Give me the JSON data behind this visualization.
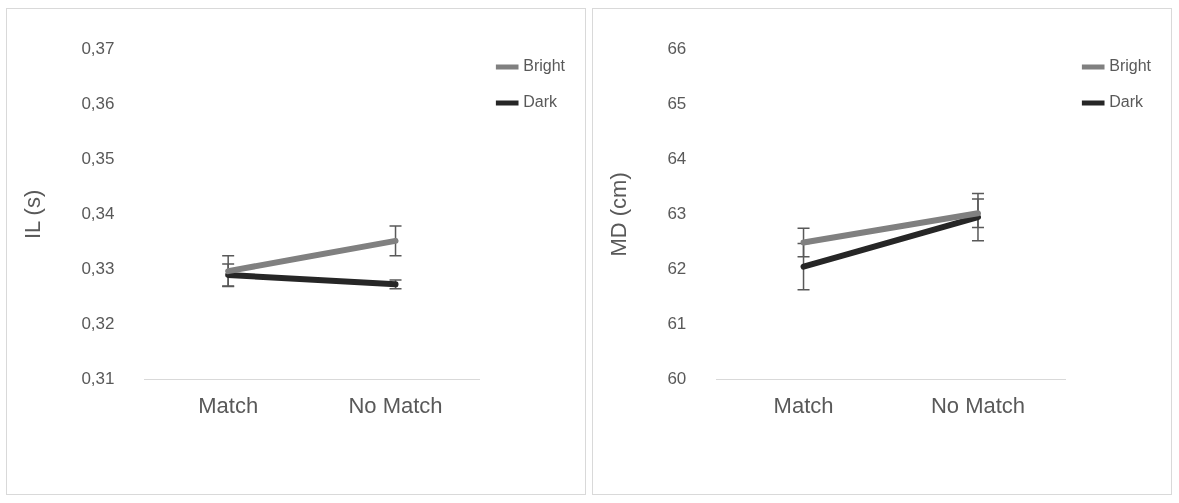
{
  "chart_data": [
    {
      "type": "line",
      "ylabel": "IL (s)",
      "categories": [
        "Match",
        "No Match"
      ],
      "ylim": [
        0.31,
        0.37
      ],
      "yticks": [
        {
          "value": 0.31,
          "label": "0,31"
        },
        {
          "value": 0.32,
          "label": "0,32"
        },
        {
          "value": 0.33,
          "label": "0,33"
        },
        {
          "value": 0.34,
          "label": "0,34"
        },
        {
          "value": 0.35,
          "label": "0,35"
        },
        {
          "value": 0.36,
          "label": "0,36"
        },
        {
          "value": 0.37,
          "label": "0,37"
        }
      ],
      "series": [
        {
          "name": "Bright",
          "color": "#808080",
          "values": [
            0.3297,
            0.3352
          ],
          "errors": [
            0.0028,
            0.0027
          ]
        },
        {
          "name": "Dark",
          "color": "#262626",
          "values": [
            0.329,
            0.3273
          ],
          "errors": [
            0.002,
            0.0008
          ]
        }
      ],
      "grid": false,
      "legend": "right"
    },
    {
      "type": "line",
      "ylabel": "MD (cm)",
      "categories": [
        "Match",
        "No Match"
      ],
      "ylim": [
        60,
        66
      ],
      "yticks": [
        60,
        61,
        62,
        63,
        64,
        65,
        66
      ],
      "series": [
        {
          "name": "Bright",
          "color": "#808080",
          "values": [
            62.49,
            63.02
          ],
          "errors": [
            0.26,
            0.26
          ]
        },
        {
          "name": "Dark",
          "color": "#262626",
          "values": [
            62.05,
            62.95
          ],
          "errors": [
            0.42,
            0.43
          ]
        }
      ],
      "grid": false,
      "legend": "right"
    }
  ]
}
